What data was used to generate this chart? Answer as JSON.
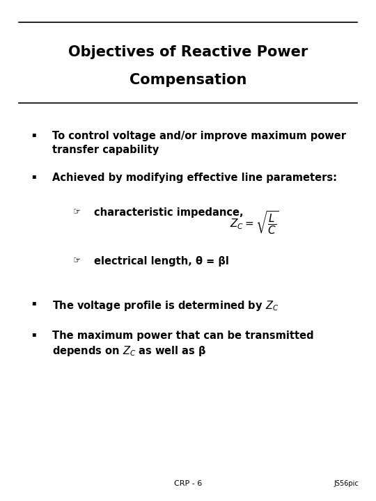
{
  "title_line1": "Objectives of Reactive Power",
  "title_line2": "Compensation",
  "bg_color": "#ffffff",
  "text_color": "#000000",
  "title_fontsize": 15,
  "body_fontsize": 10.5,
  "sub_fontsize": 10.5,
  "footer_text": "CRP - 6",
  "footer_right": "JS56pic",
  "bullet1_line1": "To control voltage and/or improve maximum power",
  "bullet1_line2": "transfer capability",
  "bullet2": "Achieved by modifying effective line parameters:",
  "sub1_text": "characteristic impedance,",
  "sub2_text": "electrical length, θ = βl",
  "bullet3": "The voltage profile is determined by $Z_C$",
  "bullet4_line1": "The maximum power that can be transmitted",
  "bullet4_line2": "depends on $Z_C$ as well as β"
}
